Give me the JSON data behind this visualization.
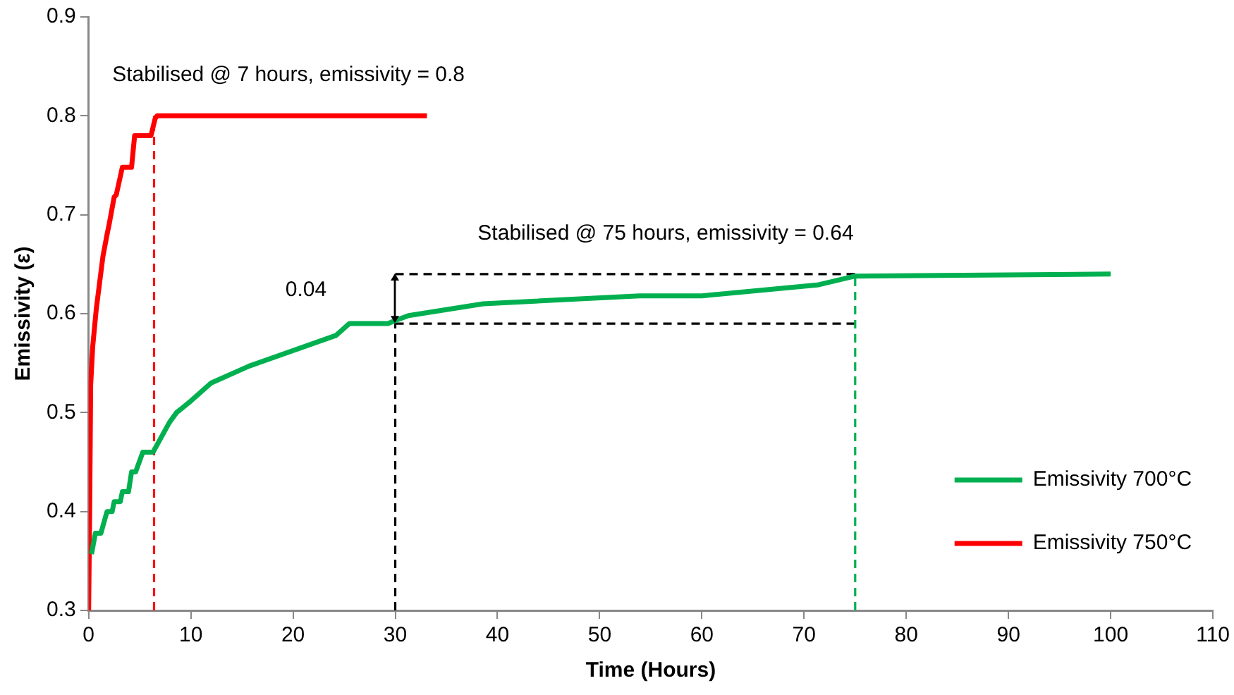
{
  "chart_data": {
    "type": "line",
    "xlabel": "Time (Hours)",
    "ylabel": "Emissivity (ε)",
    "xlim": [
      0,
      110
    ],
    "xticks": [
      0,
      10,
      20,
      30,
      40,
      50,
      60,
      70,
      80,
      90,
      100,
      110
    ],
    "ylim": [
      0.3,
      0.9
    ],
    "yticks": [
      0.3,
      0.4,
      0.5,
      0.6,
      0.7,
      0.8,
      0.9
    ],
    "grid": false,
    "legend": "bottom right",
    "marker": "none",
    "line_style": "solid",
    "series": [
      {
        "name": "Emissivity 700°C",
        "color": "#00b050",
        "x": [
          0.28,
          0.66,
          1.2,
          1.8,
          2.3,
          2.5,
          3.1,
          3.3,
          3.9,
          4.2,
          4.6,
          5.3,
          6.3,
          7.9,
          8.6,
          9.8,
          12,
          15.7,
          24.2,
          25.5,
          29.3,
          30,
          31.3,
          38.6,
          53.9,
          60,
          71.3,
          75,
          100
        ],
        "values": [
          0.357,
          0.378,
          0.378,
          0.4,
          0.4,
          0.41,
          0.41,
          0.42,
          0.42,
          0.44,
          0.44,
          0.46,
          0.46,
          0.49,
          0.5,
          0.51,
          0.53,
          0.547,
          0.578,
          0.59,
          0.59,
          0.593,
          0.598,
          0.61,
          0.618,
          0.618,
          0.629,
          0.638,
          0.64
        ]
      },
      {
        "name": "Emissivity 750°C",
        "color": "#ff0000",
        "x": [
          0,
          0.1,
          0.2,
          0.4,
          0.75,
          1.4,
          1.8,
          2,
          2.5,
          2.7,
          3.3,
          4.2,
          4.5,
          6.1,
          6.5,
          6.7,
          33.1
        ],
        "values": [
          0.3,
          0.398,
          0.528,
          0.567,
          0.605,
          0.658,
          0.68,
          0.69,
          0.718,
          0.72,
          0.748,
          0.748,
          0.78,
          0.78,
          0.797,
          0.8,
          0.8
        ]
      },
      {
        "color": "#ff0000",
        "line_style": "dashed",
        "x": [
          6.4,
          6.4
        ],
        "values": [
          0.3,
          0.8
        ]
      },
      {
        "color": "#00b050",
        "line_style": "dashed",
        "x": [
          75,
          75
        ],
        "values": [
          0.3,
          0.64
        ]
      },
      {
        "color": "#000000",
        "line_style": "dashed",
        "x": [
          30,
          30
        ],
        "values": [
          0.3,
          0.59
        ]
      },
      {
        "color": "#000000",
        "line_style": "dashed",
        "x": [
          30,
          75
        ],
        "values": [
          0.59,
          0.59
        ]
      },
      {
        "color": "#000000",
        "line_style": "dashed",
        "x": [
          30,
          75
        ],
        "values": [
          0.64,
          0.64
        ]
      }
    ],
    "annotations": [
      "Stabilised @ 7 hours, emissivity = 0.8",
      "Stabilised @ 75 hours, emissivity = 0.64",
      "0.04"
    ]
  }
}
